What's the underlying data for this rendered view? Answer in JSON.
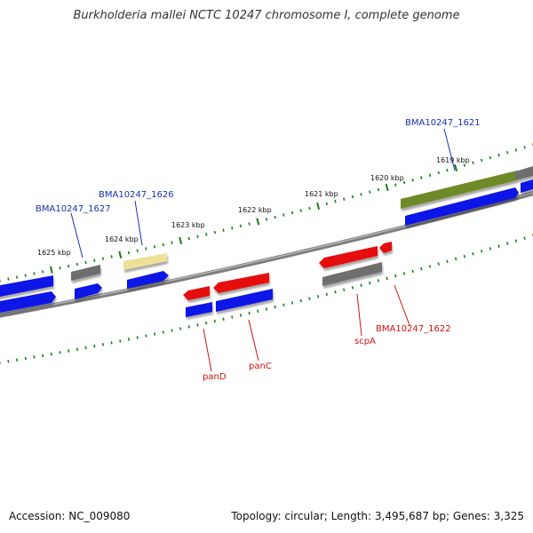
{
  "title": "Burkholderia mallei NCTC 10247 chromosome I, complete genome",
  "accession": "Accession: NC_009080",
  "summary": "Topology: circular; Length: 3,495,687 bp; Genes: 3,325",
  "colors": {
    "cds": "#0a12e6",
    "gene": "#6a6a6a",
    "highlight_red": "#e61010",
    "highlight_olive": "#6e8a26",
    "pseudo": "#eee096",
    "backbone": "#888888",
    "tick": "#1a7d1a",
    "label_blue": "#1a2fb0",
    "label_red": "#cc1010"
  },
  "ticks": [
    {
      "label": "1625 kbp"
    },
    {
      "label": "1624 kbp"
    },
    {
      "label": "1623 kbp"
    },
    {
      "label": "1622 kbp"
    },
    {
      "label": "1621 kbp"
    },
    {
      "label": "1620 kbp"
    },
    {
      "label": "1619 kbp"
    }
  ],
  "labels": {
    "upper": [
      {
        "text": "BMA10247_1627"
      },
      {
        "text": "BMA10247_1626"
      },
      {
        "text": "BMA10247_1621"
      }
    ],
    "lower": [
      {
        "text": "panD"
      },
      {
        "text": "panC"
      },
      {
        "text": "scpA"
      },
      {
        "text": "BMA10247_1622"
      }
    ]
  }
}
